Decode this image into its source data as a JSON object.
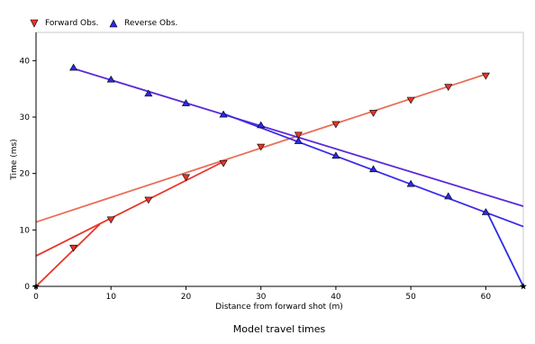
{
  "chart_data": {
    "type": "scatter",
    "title": "",
    "caption": "Model travel times",
    "xlabel": "Distance from forward shot (m)",
    "ylabel": "Time (ms)",
    "xlim": [
      0,
      65
    ],
    "ylim": [
      0,
      45
    ],
    "x_ticks": [
      0,
      10,
      20,
      30,
      40,
      50,
      60
    ],
    "y_ticks": [
      0,
      10,
      20,
      30,
      40
    ],
    "grid": false,
    "legend_position": "top-left",
    "series": [
      {
        "name": "Forward Obs.",
        "marker": "triangle-down",
        "color": "#e8352b",
        "points": [
          {
            "x": 5,
            "y": 6.8
          },
          {
            "x": 10,
            "y": 11.8
          },
          {
            "x": 15,
            "y": 15.3
          },
          {
            "x": 20,
            "y": 19.3
          },
          {
            "x": 25,
            "y": 21.8
          },
          {
            "x": 30,
            "y": 24.7
          },
          {
            "x": 35,
            "y": 26.8
          },
          {
            "x": 40,
            "y": 28.7
          },
          {
            "x": 45,
            "y": 30.7
          },
          {
            "x": 50,
            "y": 33.0
          },
          {
            "x": 55,
            "y": 35.3
          },
          {
            "x": 60,
            "y": 37.3
          }
        ]
      },
      {
        "name": "Reverse Obs.",
        "marker": "triangle-up",
        "color": "#2a2ae8",
        "points": [
          {
            "x": 5,
            "y": 38.8
          },
          {
            "x": 10,
            "y": 36.7
          },
          {
            "x": 15,
            "y": 34.2
          },
          {
            "x": 20,
            "y": 32.5
          },
          {
            "x": 25,
            "y": 30.5
          },
          {
            "x": 30,
            "y": 28.6
          },
          {
            "x": 35,
            "y": 25.8
          },
          {
            "x": 40,
            "y": 23.2
          },
          {
            "x": 45,
            "y": 20.8
          },
          {
            "x": 50,
            "y": 18.2
          },
          {
            "x": 55,
            "y": 16.0
          },
          {
            "x": 60,
            "y": 13.2
          }
        ]
      }
    ],
    "lines": [
      {
        "color": "#e8352b",
        "points": [
          {
            "x": 0,
            "y": 0
          },
          {
            "x": 8.5,
            "y": 11
          }
        ]
      },
      {
        "color": "#e8352b",
        "points": [
          {
            "x": 0,
            "y": 5.4
          },
          {
            "x": 25,
            "y": 22.1
          }
        ]
      },
      {
        "color": "#e8705a",
        "points": [
          {
            "x": 0,
            "y": 11.4
          },
          {
            "x": 60,
            "y": 37.6
          }
        ]
      },
      {
        "color": "#5a2ad8",
        "points": [
          {
            "x": 5,
            "y": 38.6
          },
          {
            "x": 65,
            "y": 14.2
          }
        ]
      },
      {
        "color": "#3a2ae8",
        "points": [
          {
            "x": 25,
            "y": 30.6
          },
          {
            "x": 65,
            "y": 10.6
          }
        ]
      },
      {
        "color": "#2a2ae8",
        "points": [
          {
            "x": 60,
            "y": 13.6
          },
          {
            "x": 65,
            "y": 0
          }
        ]
      }
    ],
    "source_markers": [
      {
        "x": 0,
        "y": 0,
        "marker": "star",
        "color": "#000000"
      },
      {
        "x": 65,
        "y": 0,
        "marker": "star",
        "color": "#000000"
      }
    ]
  }
}
